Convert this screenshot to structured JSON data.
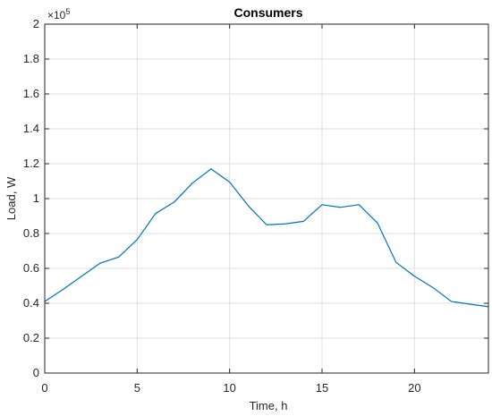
{
  "chart_data": {
    "type": "line",
    "title": "Consumers",
    "xlabel": "Time, h",
    "ylabel": "Load, W",
    "y_exponent_prefix": "×10",
    "y_exponent_power": "5",
    "xlim": [
      0,
      24
    ],
    "ylim": [
      0,
      2
    ],
    "grid": true,
    "x_ticks": [
      0,
      5,
      10,
      15,
      20
    ],
    "x_tick_labels": [
      "0",
      "5",
      "10",
      "15",
      "20"
    ],
    "y_ticks": [
      0,
      0.2,
      0.4,
      0.6,
      0.8,
      1,
      1.2,
      1.4,
      1.6,
      1.8,
      2
    ],
    "y_tick_labels": [
      "0",
      "0.2",
      "0.4",
      "0.6",
      "0.8",
      "1",
      "1.2",
      "1.4",
      "1.6",
      "1.8",
      "2"
    ],
    "series": [
      {
        "color": "#0072bd",
        "x": [
          0,
          1,
          2,
          3,
          4,
          5,
          6,
          7,
          8,
          9,
          10,
          11,
          12,
          13,
          14,
          15,
          16,
          17,
          18,
          19,
          20,
          21,
          22,
          23,
          24
        ],
        "y": [
          0.41,
          0.48,
          0.555,
          0.63,
          0.665,
          0.765,
          0.915,
          0.98,
          1.09,
          1.17,
          1.095,
          0.96,
          0.85,
          0.855,
          0.87,
          0.965,
          0.95,
          0.965,
          0.86,
          0.635,
          0.555,
          0.49,
          0.41,
          0.395,
          0.38
        ]
      }
    ]
  }
}
